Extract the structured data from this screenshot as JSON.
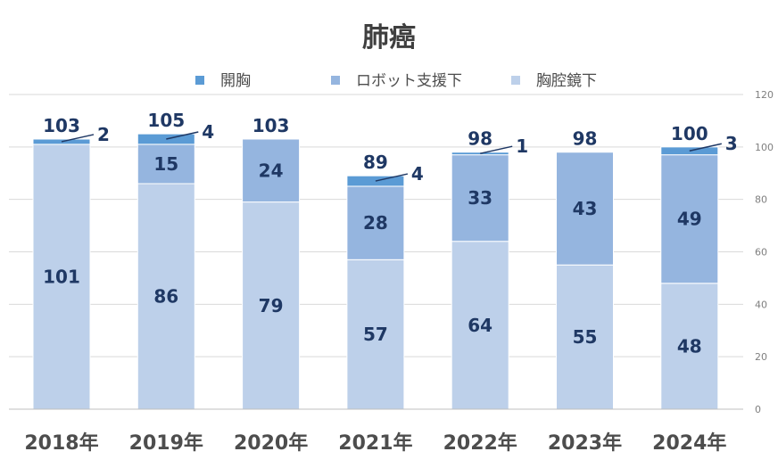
{
  "chart_data": {
    "type": "bar",
    "stacked": true,
    "title": "肺癌",
    "categories": [
      "2018年",
      "2019年",
      "2020年",
      "2021年",
      "2022年",
      "2023年",
      "2024年"
    ],
    "series": [
      {
        "name": "胸腔鏡下",
        "values": [
          101,
          86,
          79,
          57,
          64,
          55,
          48
        ],
        "color": "#bdd0ea"
      },
      {
        "name": "ロボット支援下",
        "values": [
          0,
          15,
          24,
          28,
          33,
          43,
          49
        ],
        "color": "#95b5df"
      },
      {
        "name": "開胸",
        "values": [
          2,
          4,
          0,
          4,
          1,
          0,
          3
        ],
        "color": "#5b9bd5"
      }
    ],
    "legend_order": [
      "開胸",
      "ロボット支援下",
      "胸腔鏡下"
    ],
    "totals": [
      103,
      105,
      103,
      89,
      98,
      98,
      100
    ],
    "ylim": [
      0,
      120
    ],
    "yticks": [
      0,
      20,
      40,
      60,
      80,
      100,
      120
    ],
    "y_axis_side": "right",
    "grid": true,
    "legend_position": "top"
  }
}
